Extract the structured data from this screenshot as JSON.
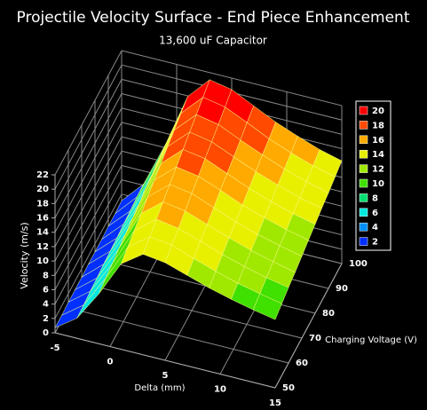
{
  "chart_data": {
    "type": "surface",
    "title": "Projectile Velocity Surface - End Piece Enhancement",
    "subtitle": "13,600 uF Capacitor",
    "x_label": "Delta (mm)",
    "y_label": "Charging Voltage (V)",
    "z_label": "Velocity (m/s)",
    "x": [
      -5,
      -3,
      -1,
      1,
      3,
      5,
      7,
      9,
      11,
      13,
      15
    ],
    "y": [
      50,
      55,
      60,
      65,
      70,
      75,
      80,
      85,
      90,
      95,
      100
    ],
    "z": [
      [
        0.7,
        2.8,
        7.0,
        11.9,
        14.0,
        13.6,
        12.6,
        11.6,
        10.8,
        10.1,
        9.5
      ],
      [
        0.7,
        2.9,
        7.4,
        12.5,
        14.7,
        14.3,
        13.2,
        12.2,
        11.3,
        10.6,
        10.0
      ],
      [
        0.8,
        3.1,
        7.7,
        13.1,
        15.4,
        14.9,
        13.9,
        12.8,
        11.9,
        11.1,
        10.5
      ],
      [
        0.8,
        3.2,
        8.1,
        13.7,
        16.1,
        15.6,
        14.5,
        13.4,
        12.4,
        11.6,
        10.9
      ],
      [
        0.8,
        3.4,
        8.4,
        14.3,
        16.8,
        16.3,
        15.1,
        13.9,
        12.9,
        12.1,
        11.4
      ],
      [
        0.9,
        3.5,
        8.8,
        14.9,
        17.5,
        17.0,
        15.8,
        14.5,
        13.5,
        12.6,
        11.9
      ],
      [
        0.9,
        3.6,
        9.1,
        15.5,
        18.2,
        17.7,
        16.4,
        15.1,
        14.0,
        13.1,
        12.4
      ],
      [
        0.9,
        3.8,
        9.5,
        16.1,
        18.9,
        18.3,
        17.0,
        15.7,
        14.6,
        13.6,
        12.9
      ],
      [
        1.0,
        3.9,
        9.8,
        16.7,
        19.6,
        19.0,
        17.6,
        16.3,
        15.1,
        14.1,
        13.3
      ],
      [
        1.0,
        4.1,
        10.2,
        17.3,
        20.3,
        19.7,
        18.3,
        16.8,
        15.6,
        14.6,
        13.8
      ],
      [
        1.1,
        4.2,
        10.5,
        17.9,
        21.0,
        20.4,
        18.9,
        17.4,
        16.2,
        15.1,
        14.3
      ]
    ],
    "xlim": [
      -5,
      15
    ],
    "xticks": [
      -5,
      0,
      5,
      10,
      15
    ],
    "ylim": [
      50,
      100
    ],
    "yticks": [
      50,
      60,
      70,
      80,
      90,
      100
    ],
    "zlim": [
      0,
      22
    ],
    "zticks": [
      0,
      2,
      4,
      6,
      8,
      10,
      12,
      14,
      16,
      18,
      20,
      22
    ],
    "grid": true,
    "legend_position": "right",
    "legend": [
      {
        "value": 20,
        "color": "#ff0000"
      },
      {
        "value": 18,
        "color": "#ff4a00"
      },
      {
        "value": 16,
        "color": "#ffaa00"
      },
      {
        "value": 14,
        "color": "#e8f000"
      },
      {
        "value": 12,
        "color": "#a0e800"
      },
      {
        "value": 10,
        "color": "#40e000"
      },
      {
        "value": 8,
        "color": "#00e070"
      },
      {
        "value": 6,
        "color": "#00e8e0"
      },
      {
        "value": 4,
        "color": "#0090ff"
      },
      {
        "value": 2,
        "color": "#0030ff"
      }
    ]
  }
}
